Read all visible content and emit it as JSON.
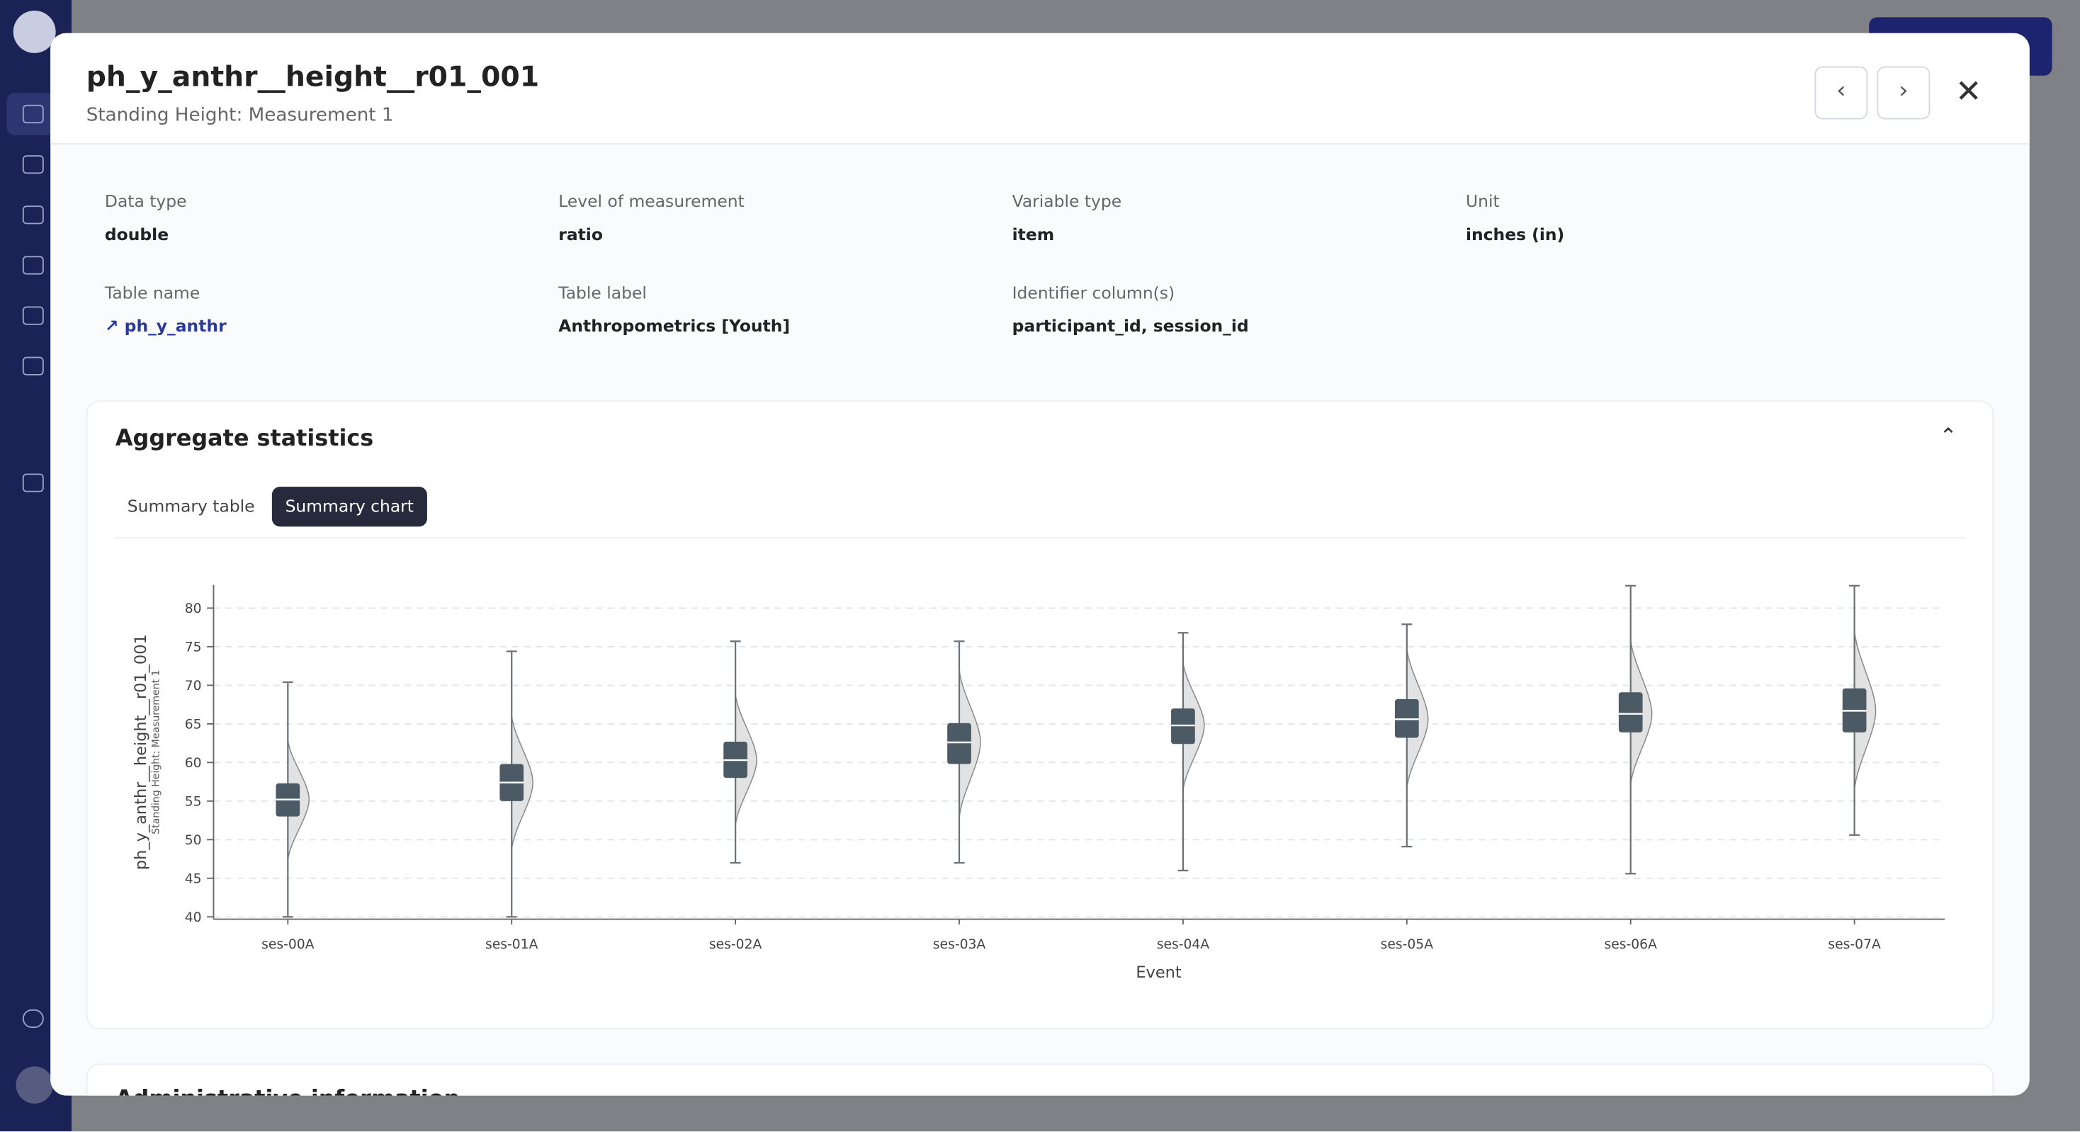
{
  "header": {
    "title": "ph_y_anthr__height__r01_001",
    "subtitle": "Standing Height: Measurement 1"
  },
  "fields": [
    {
      "label": "Data type",
      "value": "double"
    },
    {
      "label": "Level of measurement",
      "value": "ratio"
    },
    {
      "label": "Variable type",
      "value": "item"
    },
    {
      "label": "Unit",
      "value": "inches (in)"
    },
    {
      "label": "Table name",
      "value": "ph_y_anthr"
    },
    {
      "label": "Table label",
      "value": "Anthropometrics [Youth]"
    },
    {
      "label": "Identifier column(s)",
      "value": "participant_id, session_id"
    }
  ],
  "section": {
    "title": "Aggregate statistics",
    "tabs": [
      "Summary table",
      "Summary chart"
    ],
    "active_tab": 1
  },
  "next_section": {
    "title": "Administrative information"
  },
  "chart_data": {
    "type": "box",
    "xlabel": "Event",
    "ylabel": "ph_y_anthr__height__r01_001",
    "ylabel_sub": "Standing Height: Measurement 1",
    "categories": [
      "ses-00A",
      "ses-01A",
      "ses-02A",
      "ses-03A",
      "ses-04A",
      "ses-05A",
      "ses-06A",
      "ses-07A"
    ],
    "boxes": [
      {
        "min": 40.0,
        "q1": 53.0,
        "median": 55.2,
        "q3": 57.3,
        "max": 70.4
      },
      {
        "min": 40.0,
        "q1": 55.0,
        "median": 57.4,
        "q3": 59.8,
        "max": 74.4
      },
      {
        "min": 47.0,
        "q1": 58.0,
        "median": 60.3,
        "q3": 62.7,
        "max": 75.7
      },
      {
        "min": 47.0,
        "q1": 59.8,
        "median": 62.6,
        "q3": 65.1,
        "max": 75.7
      },
      {
        "min": 46.0,
        "q1": 62.4,
        "median": 64.8,
        "q3": 67.0,
        "max": 76.8
      },
      {
        "min": 49.1,
        "q1": 63.2,
        "median": 65.6,
        "q3": 68.2,
        "max": 77.9
      },
      {
        "min": 45.6,
        "q1": 63.9,
        "median": 66.3,
        "q3": 69.1,
        "max": 82.9
      },
      {
        "min": 50.6,
        "q1": 63.9,
        "median": 66.7,
        "q3": 69.6,
        "max": 82.9
      }
    ],
    "color": "#4b5a65",
    "ylim": [
      39.7,
      83
    ],
    "yticks": [
      40,
      45,
      50,
      55,
      60,
      65,
      70,
      75,
      80
    ],
    "grid": true
  }
}
